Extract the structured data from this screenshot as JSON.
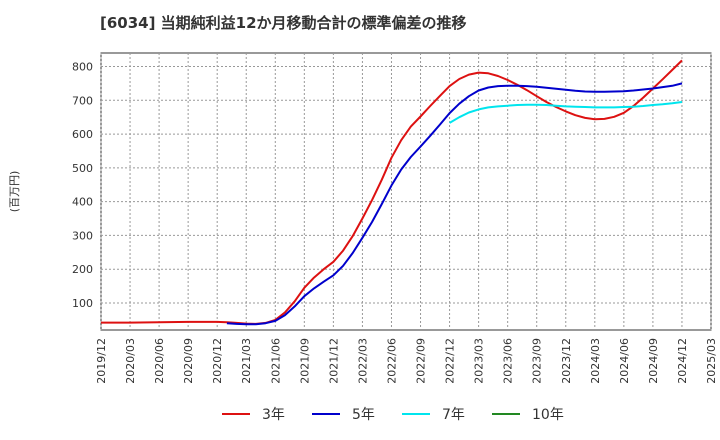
{
  "chart_data": {
    "type": "line",
    "title": "[6034]  当期純利益12か月移動合計の標準偏差の推移",
    "ylabel": "(百万円)",
    "xlabel": "",
    "ylim": [
      20,
      840
    ],
    "yticks": [
      100,
      200,
      300,
      400,
      500,
      600,
      700,
      800
    ],
    "x_categories": [
      "2019/12",
      "2020/03",
      "2020/06",
      "2020/09",
      "2020/12",
      "2021/03",
      "2021/06",
      "2021/09",
      "2021/12",
      "2022/03",
      "2022/06",
      "2022/09",
      "2022/12",
      "2023/03",
      "2023/06",
      "2023/09",
      "2023/12",
      "2024/03",
      "2024/06",
      "2024/09",
      "2024/12",
      "2025/03"
    ],
    "grid": true,
    "legend_position": "bottom",
    "series": [
      {
        "name": "3年",
        "color": "#dd1111",
        "points": [
          {
            "x": "2019/12",
            "y": 42
          },
          {
            "x": "2020/03",
            "y": 42
          },
          {
            "x": "2020/06",
            "y": 43
          },
          {
            "x": "2020/09",
            "y": 44
          },
          {
            "x": "2020/12",
            "y": 44
          },
          {
            "x": "2021/01",
            "y": 43
          },
          {
            "x": "2021/02",
            "y": 41
          },
          {
            "x": "2021/03",
            "y": 39
          },
          {
            "x": "2021/04",
            "y": 38
          },
          {
            "x": "2021/05",
            "y": 41
          },
          {
            "x": "2021/06",
            "y": 50
          },
          {
            "x": "2021/07",
            "y": 72
          },
          {
            "x": "2021/08",
            "y": 105
          },
          {
            "x": "2021/09",
            "y": 145
          },
          {
            "x": "2021/10",
            "y": 175
          },
          {
            "x": "2021/11",
            "y": 200
          },
          {
            "x": "2021/12",
            "y": 222
          },
          {
            "x": "2022/01",
            "y": 255
          },
          {
            "x": "2022/02",
            "y": 298
          },
          {
            "x": "2022/03",
            "y": 350
          },
          {
            "x": "2022/04",
            "y": 405
          },
          {
            "x": "2022/05",
            "y": 465
          },
          {
            "x": "2022/06",
            "y": 530
          },
          {
            "x": "2022/07",
            "y": 582
          },
          {
            "x": "2022/08",
            "y": 622
          },
          {
            "x": "2022/09",
            "y": 652
          },
          {
            "x": "2022/10",
            "y": 683
          },
          {
            "x": "2022/11",
            "y": 713
          },
          {
            "x": "2022/12",
            "y": 742
          },
          {
            "x": "2023/01",
            "y": 763
          },
          {
            "x": "2023/02",
            "y": 776
          },
          {
            "x": "2023/03",
            "y": 782
          },
          {
            "x": "2023/04",
            "y": 780
          },
          {
            "x": "2023/05",
            "y": 772
          },
          {
            "x": "2023/06",
            "y": 760
          },
          {
            "x": "2023/07",
            "y": 746
          },
          {
            "x": "2023/08",
            "y": 730
          },
          {
            "x": "2023/09",
            "y": 712
          },
          {
            "x": "2023/10",
            "y": 695
          },
          {
            "x": "2023/11",
            "y": 680
          },
          {
            "x": "2023/12",
            "y": 667
          },
          {
            "x": "2024/01",
            "y": 656
          },
          {
            "x": "2024/02",
            "y": 648
          },
          {
            "x": "2024/03",
            "y": 644
          },
          {
            "x": "2024/04",
            "y": 645
          },
          {
            "x": "2024/05",
            "y": 651
          },
          {
            "x": "2024/06",
            "y": 663
          },
          {
            "x": "2024/07",
            "y": 683
          },
          {
            "x": "2024/08",
            "y": 708
          },
          {
            "x": "2024/09",
            "y": 735
          },
          {
            "x": "2024/10",
            "y": 762
          },
          {
            "x": "2024/11",
            "y": 790
          },
          {
            "x": "2024/12",
            "y": 818
          }
        ]
      },
      {
        "name": "5年",
        "color": "#0000cc",
        "points": [
          {
            "x": "2021/01",
            "y": 40
          },
          {
            "x": "2021/02",
            "y": 38
          },
          {
            "x": "2021/03",
            "y": 37
          },
          {
            "x": "2021/04",
            "y": 37
          },
          {
            "x": "2021/05",
            "y": 40
          },
          {
            "x": "2021/06",
            "y": 47
          },
          {
            "x": "2021/07",
            "y": 64
          },
          {
            "x": "2021/08",
            "y": 90
          },
          {
            "x": "2021/09",
            "y": 120
          },
          {
            "x": "2021/10",
            "y": 143
          },
          {
            "x": "2021/11",
            "y": 163
          },
          {
            "x": "2021/12",
            "y": 182
          },
          {
            "x": "2022/01",
            "y": 210
          },
          {
            "x": "2022/02",
            "y": 248
          },
          {
            "x": "2022/03",
            "y": 293
          },
          {
            "x": "2022/04",
            "y": 340
          },
          {
            "x": "2022/05",
            "y": 393
          },
          {
            "x": "2022/06",
            "y": 448
          },
          {
            "x": "2022/07",
            "y": 495
          },
          {
            "x": "2022/08",
            "y": 532
          },
          {
            "x": "2022/09",
            "y": 563
          },
          {
            "x": "2022/10",
            "y": 595
          },
          {
            "x": "2022/11",
            "y": 628
          },
          {
            "x": "2022/12",
            "y": 662
          },
          {
            "x": "2023/01",
            "y": 690
          },
          {
            "x": "2023/02",
            "y": 712
          },
          {
            "x": "2023/03",
            "y": 729
          },
          {
            "x": "2023/04",
            "y": 738
          },
          {
            "x": "2023/05",
            "y": 742
          },
          {
            "x": "2023/06",
            "y": 743
          },
          {
            "x": "2023/07",
            "y": 743
          },
          {
            "x": "2023/08",
            "y": 742
          },
          {
            "x": "2023/09",
            "y": 740
          },
          {
            "x": "2023/10",
            "y": 737
          },
          {
            "x": "2023/11",
            "y": 734
          },
          {
            "x": "2023/12",
            "y": 731
          },
          {
            "x": "2024/01",
            "y": 728
          },
          {
            "x": "2024/02",
            "y": 726
          },
          {
            "x": "2024/03",
            "y": 725
          },
          {
            "x": "2024/04",
            "y": 725
          },
          {
            "x": "2024/05",
            "y": 726
          },
          {
            "x": "2024/06",
            "y": 727
          },
          {
            "x": "2024/07",
            "y": 729
          },
          {
            "x": "2024/08",
            "y": 732
          },
          {
            "x": "2024/09",
            "y": 735
          },
          {
            "x": "2024/10",
            "y": 739
          },
          {
            "x": "2024/11",
            "y": 743
          },
          {
            "x": "2024/12",
            "y": 750
          }
        ]
      },
      {
        "name": "7年",
        "color": "#00e5ee",
        "points": [
          {
            "x": "2022/12",
            "y": 633
          },
          {
            "x": "2023/01",
            "y": 650
          },
          {
            "x": "2023/02",
            "y": 664
          },
          {
            "x": "2023/03",
            "y": 673
          },
          {
            "x": "2023/04",
            "y": 679
          },
          {
            "x": "2023/05",
            "y": 682
          },
          {
            "x": "2023/06",
            "y": 684
          },
          {
            "x": "2023/07",
            "y": 686
          },
          {
            "x": "2023/08",
            "y": 687
          },
          {
            "x": "2023/09",
            "y": 687
          },
          {
            "x": "2023/10",
            "y": 686
          },
          {
            "x": "2023/11",
            "y": 684
          },
          {
            "x": "2023/12",
            "y": 682
          },
          {
            "x": "2024/01",
            "y": 681
          },
          {
            "x": "2024/02",
            "y": 680
          },
          {
            "x": "2024/03",
            "y": 679
          },
          {
            "x": "2024/04",
            "y": 679
          },
          {
            "x": "2024/05",
            "y": 679
          },
          {
            "x": "2024/06",
            "y": 680
          },
          {
            "x": "2024/07",
            "y": 681
          },
          {
            "x": "2024/08",
            "y": 683
          },
          {
            "x": "2024/09",
            "y": 686
          },
          {
            "x": "2024/10",
            "y": 688
          },
          {
            "x": "2024/11",
            "y": 691
          },
          {
            "x": "2024/12",
            "y": 695
          }
        ]
      },
      {
        "name": "10年",
        "color": "#228822",
        "points": []
      }
    ]
  }
}
